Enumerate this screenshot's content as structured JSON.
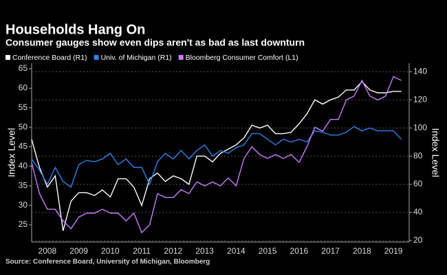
{
  "chart_data": {
    "type": "line",
    "title": "Households Hang On",
    "subtitle": "Consumer gauges show even dips aren't as bad as last downturn",
    "source": "Source: Conference Board, University of Michigan, Bloomberg",
    "ylabel": "Index Level",
    "y2label": "Index Level",
    "x": [
      2008,
      2008.25,
      2008.5,
      2008.75,
      2009,
      2009.25,
      2009.5,
      2009.75,
      2010,
      2010.25,
      2010.5,
      2010.75,
      2011,
      2011.25,
      2011.5,
      2011.75,
      2012,
      2012.25,
      2012.5,
      2012.75,
      2013,
      2013.25,
      2013.5,
      2013.75,
      2014,
      2014.25,
      2014.5,
      2014.75,
      2015,
      2015.25,
      2015.5,
      2015.75,
      2016,
      2016.25,
      2016.5,
      2016.75,
      2017,
      2017.25,
      2017.5,
      2017.75,
      2018,
      2018.25,
      2018.5,
      2018.75,
      2019,
      2019.25,
      2019.5,
      2019.75
    ],
    "xlim": [
      2008,
      2020
    ],
    "xticks": [
      {
        "value": 2008.5,
        "label": "2008"
      },
      {
        "value": 2009.5,
        "label": "2009"
      },
      {
        "value": 2010.5,
        "label": "2010"
      },
      {
        "value": 2011.5,
        "label": "2011"
      },
      {
        "value": 2012.5,
        "label": "2012"
      },
      {
        "value": 2013.5,
        "label": "2013"
      },
      {
        "value": 2014.5,
        "label": "2014"
      },
      {
        "value": 2015.5,
        "label": "2015"
      },
      {
        "value": 2016.5,
        "label": "2016"
      },
      {
        "value": 2017.5,
        "label": "2017"
      },
      {
        "value": 2018.5,
        "label": "2018"
      },
      {
        "value": 2019.5,
        "label": "2019"
      }
    ],
    "ylim": [
      20.6,
      66.4
    ],
    "yticks": [
      25,
      30,
      35,
      40,
      45,
      50,
      55,
      60,
      65
    ],
    "y2lim": [
      19,
      146
    ],
    "y2ticks": [
      20,
      40,
      60,
      80,
      100,
      120,
      140
    ],
    "grid": "y2",
    "series": [
      {
        "name": "Conference Board (R1)",
        "color": "#ffffff",
        "axis": "y2",
        "values": [
          92,
          72,
          58,
          66,
          27,
          48,
          54,
          54,
          52,
          56,
          51,
          64,
          64,
          58,
          45,
          64,
          68,
          62,
          66,
          64,
          60,
          80,
          80,
          76,
          82,
          85,
          88,
          93,
          102,
          100,
          102,
          96,
          96,
          97,
          103,
          110,
          120,
          117,
          120,
          122,
          127,
          127,
          133,
          127,
          125,
          125,
          126,
          126
        ]
      },
      {
        "name": "Univ. of Michigan (R1)",
        "color": "#2f80ed",
        "axis": "y2",
        "values": [
          78,
          70,
          60,
          72,
          62,
          58,
          74,
          77,
          76,
          78,
          82,
          74,
          78,
          72,
          72,
          60,
          76,
          82,
          78,
          84,
          78,
          84,
          88,
          80,
          84,
          82,
          86,
          88,
          96,
          96,
          92,
          88,
          92,
          90,
          92,
          90,
          98,
          97,
          95,
          95,
          97,
          101,
          98,
          100,
          98,
          98,
          98,
          92
        ]
      },
      {
        "name": "Bloomberg Consumer Comfort (L1)",
        "color": "#c77dff",
        "axis": "y",
        "values": [
          41,
          33,
          29,
          29,
          26,
          24,
          27,
          28,
          28,
          29,
          28,
          28,
          26,
          28,
          23,
          25,
          33,
          32,
          32,
          34,
          33,
          36,
          35,
          36,
          35,
          37,
          35,
          42,
          45,
          43,
          42,
          43,
          42,
          43,
          41,
          45,
          50,
          49,
          52,
          52,
          57,
          58,
          62,
          58,
          57,
          58,
          63,
          62
        ]
      }
    ]
  }
}
